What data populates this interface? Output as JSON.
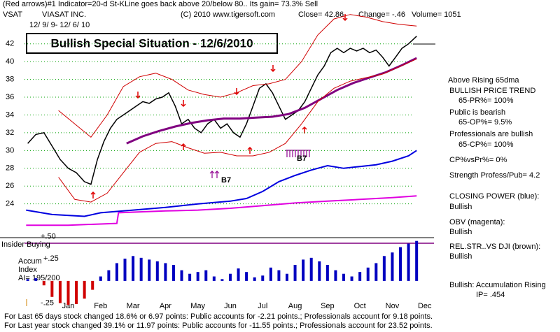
{
  "header": {
    "line1": "(Red arrows)#1 Indicator=20-d St-KLine goes back above 20/below 80.. Its gain= 73.3% Sell",
    "symbol": "VSAT",
    "company": "VIASAT INC.",
    "copyright": "(C) 2010 www.tigersoft.com",
    "close": "Close= 42.86",
    "change": "Change= -.46",
    "volume": "Volume= 1051",
    "dates": "12/ 9/ 9- 12/ 6/ 10",
    "title": "Bullish Special Situation - 12/6/2010"
  },
  "chart_data": [
    {
      "type": "line",
      "xlim": [
        -0.35,
        12.2
      ],
      "xticks": [
        {
          "value": 1,
          "label": "Jan"
        },
        {
          "value": 2,
          "label": "Feb"
        },
        {
          "value": 3,
          "label": "Mar"
        },
        {
          "value": 4,
          "label": "Apr"
        },
        {
          "value": 5,
          "label": "May"
        },
        {
          "value": 6,
          "label": "Jun"
        },
        {
          "value": 7,
          "label": "Jul"
        },
        {
          "value": 8,
          "label": "Aug"
        },
        {
          "value": 9,
          "label": "Sep"
        },
        {
          "value": 10,
          "label": "Oct"
        },
        {
          "value": 11,
          "label": "Nov"
        },
        {
          "value": 12,
          "label": "Dec"
        }
      ],
      "ylim": [
        20.2,
        45.2
      ],
      "yticks": [
        24,
        26,
        28,
        30,
        32,
        34,
        36,
        38,
        40,
        42
      ],
      "grid": true,
      "grid_color": "#00a000",
      "annotations": [
        "B7",
        "B7"
      ],
      "series": [
        {
          "color": "#000000",
          "width": 1.5,
          "x": [
            -0.25,
            0,
            0.25,
            0.5,
            0.75,
            1.0,
            1.25,
            1.5,
            1.7,
            1.9,
            2.1,
            2.3,
            2.5,
            2.7,
            2.9,
            3.1,
            3.3,
            3.5,
            3.7,
            3.9,
            4.1,
            4.3,
            4.5,
            4.7,
            4.9,
            5.1,
            5.3,
            5.5,
            5.7,
            5.9,
            6.1,
            6.3,
            6.5,
            6.7,
            6.9,
            7.1,
            7.3,
            7.5,
            7.7,
            7.9,
            8.1,
            8.3,
            8.5,
            8.7,
            8.9,
            9.1,
            9.3,
            9.5,
            9.7,
            9.9,
            10.1,
            10.3,
            10.5,
            10.7,
            10.9,
            11.1,
            11.3,
            11.5,
            11.75
          ],
          "values": [
            30.8,
            31.8,
            32,
            30.5,
            29,
            28,
            27.5,
            26.5,
            26.2,
            29,
            31,
            32.5,
            33.5,
            34,
            34.5,
            35,
            35.5,
            35.3,
            35.8,
            36,
            36.5,
            35,
            33,
            33.5,
            32.5,
            32,
            33,
            33.5,
            32.5,
            33,
            32,
            31.5,
            33,
            35,
            37,
            37.5,
            36.5,
            35,
            33.5,
            34,
            34.5,
            35.5,
            37,
            38.5,
            39.5,
            41,
            41.5,
            41,
            41.5,
            41.2,
            41.5,
            41,
            41.3,
            40.5,
            39.5,
            40.5,
            41.5,
            42,
            42.86
          ]
        },
        {
          "color": "#800080",
          "width": 3,
          "x": [
            2.8,
            3.3,
            3.8,
            4.3,
            4.8,
            5.3,
            5.8,
            6.3,
            6.8,
            7.3,
            7.8,
            8.3,
            8.8,
            9.3,
            9.8,
            10.3,
            10.8,
            11.3,
            11.75
          ],
          "values": [
            30.8,
            31.6,
            32.2,
            32.7,
            33.1,
            33.4,
            33.6,
            33.6,
            33.7,
            33.8,
            34.1,
            34.8,
            35.8,
            36.8,
            37.6,
            38.2,
            38.8,
            39.6,
            40.4
          ]
        },
        {
          "color": "#d00000",
          "width": 1,
          "x": [
            0.7,
            1.2,
            1.7,
            2.2,
            2.7,
            3.2,
            3.7,
            4.2,
            4.7,
            5.2,
            5.7,
            6.2,
            6.7,
            7.2,
            7.7,
            8.2,
            8.7,
            9.2,
            9.7,
            10.2,
            10.7,
            11.2,
            11.75
          ],
          "values": [
            34.5,
            33,
            31.5,
            34,
            37.2,
            38.3,
            38.7,
            38,
            36.8,
            36.3,
            36,
            36.5,
            37.3,
            37.5,
            38,
            40,
            43,
            44.8,
            45.3,
            45,
            44.5,
            44.2,
            44
          ]
        },
        {
          "color": "#d00000",
          "width": 1,
          "x": [
            0.7,
            1.2,
            1.7,
            2.2,
            2.7,
            3.2,
            3.7,
            4.2,
            4.7,
            5.2,
            5.7,
            6.2,
            6.7,
            7.2,
            7.7,
            8.2,
            8.7,
            9.2,
            9.7,
            10.2,
            10.7,
            11.2,
            11.75
          ],
          "values": [
            27,
            24.5,
            24.2,
            25.2,
            27.5,
            29.8,
            30.8,
            31,
            30.3,
            29.7,
            29.8,
            29.4,
            29.4,
            29.8,
            30.8,
            33,
            35.5,
            37,
            37.8,
            38.2,
            38.6,
            39.4,
            40.3
          ]
        },
        {
          "color": "#0000e0",
          "width": 2,
          "x": [
            -0.3,
            0.5,
            1.5,
            2.0,
            3.0,
            4.0,
            4.5,
            5.0,
            6.0,
            6.5,
            7.0,
            7.5,
            8.0,
            8.5,
            9.0,
            9.5,
            10.0,
            10.5,
            11.0,
            11.5,
            11.75
          ],
          "values": [
            23.3,
            22.8,
            22.6,
            23,
            23.3,
            23.6,
            23.8,
            24,
            24.3,
            24.6,
            25.4,
            26.5,
            27.2,
            27.8,
            28.3,
            28.0,
            28.2,
            28.4,
            28.8,
            29.4,
            30
          ]
        },
        {
          "color": "#e000e0",
          "width": 2,
          "x": [
            -0.3,
            1.0,
            2.5,
            2.55,
            4.0,
            5.0,
            6.0,
            7.0,
            8.0,
            9.0,
            10.0,
            11.0,
            11.75
          ],
          "values": [
            21.6,
            21.6,
            21.8,
            23.0,
            23.2,
            23.3,
            23.5,
            23.8,
            24.1,
            24.3,
            24.5,
            24.7,
            24.9
          ]
        }
      ]
    },
    {
      "type": "bar",
      "xlim": [
        -0.35,
        12.2
      ],
      "ylim": [
        -0.3,
        0.55
      ],
      "yticks": [
        {
          "value": 0.5,
          "label": "+.50"
        },
        {
          "value": 0.25,
          "label": "+.25"
        },
        {
          "value": -0.25,
          "label": "-.25"
        }
      ],
      "texts": [
        "Insider Buying",
        "Accum",
        "Index",
        "AI= 195/200"
      ],
      "pos_color": "#0000c0",
      "neg_color": "#d00000",
      "x": [
        -0.25,
        0,
        0.25,
        0.5,
        0.75,
        1.0,
        1.25,
        1.5,
        1.75,
        2.0,
        2.25,
        2.5,
        2.75,
        3.0,
        3.25,
        3.5,
        3.75,
        4.0,
        4.25,
        4.5,
        4.75,
        5.0,
        5.25,
        5.5,
        5.75,
        6.0,
        6.25,
        6.5,
        6.75,
        7.0,
        7.25,
        7.5,
        7.75,
        8.0,
        8.25,
        8.5,
        8.75,
        9.0,
        9.25,
        9.5,
        9.75,
        10.0,
        10.25,
        10.5,
        10.75,
        11.0,
        11.25,
        11.5,
        11.75
      ],
      "values": [
        0.02,
        0.03,
        -0.05,
        -0.18,
        -0.25,
        -0.27,
        -0.26,
        -0.2,
        -0.1,
        0.05,
        0.12,
        0.2,
        0.25,
        0.28,
        0.26,
        0.24,
        0.22,
        0.2,
        0.18,
        0.12,
        0.08,
        0.1,
        0.12,
        0.05,
        0.02,
        0.08,
        0.14,
        0.1,
        0.04,
        0.06,
        0.15,
        0.12,
        0.08,
        0.18,
        0.24,
        0.26,
        0.22,
        0.18,
        0.12,
        0.08,
        0.05,
        0.1,
        0.15,
        0.2,
        0.28,
        0.32,
        0.38,
        0.42,
        0.45
      ]
    }
  ],
  "side_panel": [
    "Above Rising 65dma",
    "BULLISH PRICE TREND",
    "65-PR%= 100%",
    "Public is bearish",
    "65-OP%= 9.5%",
    "Professionals are bullish",
    "65-CP%= 100%",
    "CP%vsPr%=  0%",
    "Strength Profess/Pub= 4.2",
    "CLOSING POWER (blue):",
    "Bullish",
    "OBV (magenta):",
    "Bullish",
    "REL.STR..VS DJI (brown):",
    "Bullish",
    "Bullish: Accumulation Rising",
    "IP= .454"
  ],
  "footer": [
    "For Last 65 days stock changed 18.6% or 6.97 points: Public accounts for -2.21 points.; Professionals account for 9.18 points.",
    "For Last year stock changed 39.1% or 11.97 points: Public accounts for -11.55 points.; Professionals account for 23.52 points."
  ]
}
